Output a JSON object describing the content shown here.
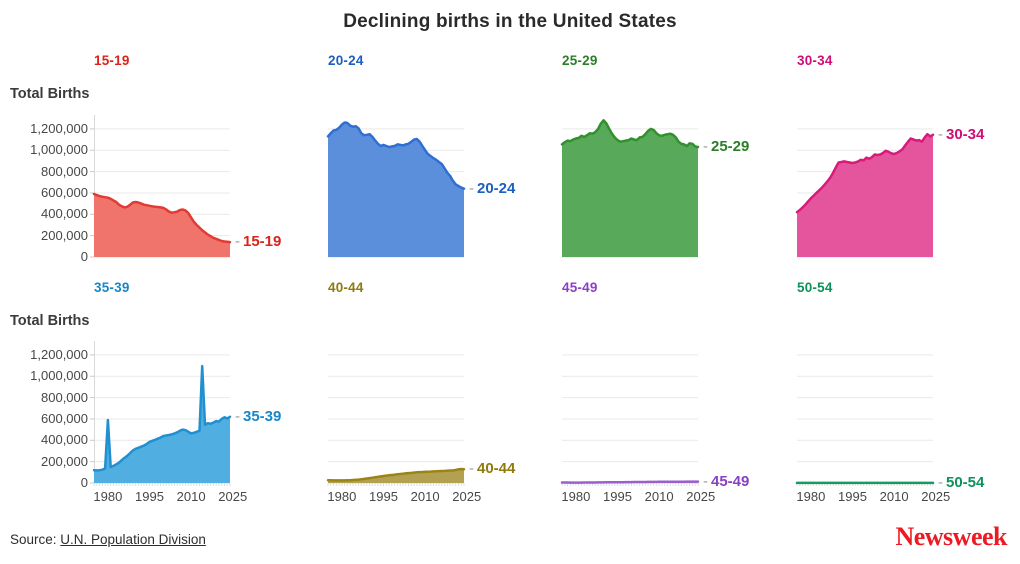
{
  "title": "Declining births in the United States",
  "y_axis_title": "Total Births",
  "source": {
    "prefix": "Source: ",
    "link": "U.N. Population Division"
  },
  "brand": "Newsweek",
  "chart_data": {
    "type": "area",
    "title": "Declining births in the United States",
    "ylabel": "Total Births",
    "layout": "small multiples, 2 rows x 4 columns, shared axes; y labels on first column, x labels on bottom row; grid on",
    "ylim": [
      0,
      1330000
    ],
    "x_years": [
      1975,
      1976,
      1977,
      1978,
      1979,
      1980,
      1981,
      1982,
      1983,
      1984,
      1985,
      1986,
      1987,
      1988,
      1989,
      1990,
      1991,
      1992,
      1993,
      1994,
      1995,
      1996,
      1997,
      1998,
      1999,
      2000,
      2001,
      2002,
      2003,
      2004,
      2005,
      2006,
      2007,
      2008,
      2009,
      2010,
      2011,
      2012,
      2013,
      2014,
      2015,
      2016,
      2017,
      2018,
      2019,
      2020,
      2021,
      2022,
      2023,
      2024
    ],
    "x_tick_years": [
      1980,
      1995,
      2010,
      2025
    ],
    "y_ticks": [
      {
        "value": 0,
        "label": "0"
      },
      {
        "value": 200000,
        "label": "200,000"
      },
      {
        "value": 400000,
        "label": "400,000"
      },
      {
        "value": 600000,
        "label": "600,000"
      },
      {
        "value": 800000,
        "label": "800,000"
      },
      {
        "value": 1000000,
        "label": "1,000,000"
      },
      {
        "value": 1200000,
        "label": "1,200,000"
      }
    ],
    "series": [
      {
        "name": "15-19",
        "stroke": "#e23b33",
        "fill": "#f0736c",
        "label_color": "#d9231b",
        "values": [
          590000,
          580000,
          570000,
          565000,
          560000,
          555000,
          545000,
          530000,
          515000,
          490000,
          475000,
          465000,
          470000,
          490000,
          510000,
          515000,
          510000,
          500000,
          490000,
          485000,
          480000,
          475000,
          470000,
          468000,
          465000,
          460000,
          445000,
          425000,
          415000,
          420000,
          425000,
          440000,
          445000,
          435000,
          410000,
          370000,
          330000,
          300000,
          275000,
          250000,
          230000,
          210000,
          195000,
          180000,
          170000,
          160000,
          150000,
          145000,
          142000,
          140000
        ]
      },
      {
        "name": "20-24",
        "stroke": "#2e6fd3",
        "fill": "#5c8fdb",
        "label_color": "#1b5fc1",
        "values": [
          1130000,
          1160000,
          1185000,
          1190000,
          1210000,
          1240000,
          1260000,
          1255000,
          1230000,
          1220000,
          1225000,
          1205000,
          1160000,
          1140000,
          1145000,
          1150000,
          1125000,
          1090000,
          1060000,
          1040000,
          1050000,
          1040000,
          1030000,
          1035000,
          1040000,
          1055000,
          1050000,
          1045000,
          1055000,
          1060000,
          1080000,
          1100000,
          1105000,
          1080000,
          1040000,
          1000000,
          965000,
          945000,
          925000,
          910000,
          890000,
          870000,
          830000,
          790000,
          760000,
          715000,
          680000,
          665000,
          650000,
          640000
        ]
      },
      {
        "name": "25-29",
        "stroke": "#31912e",
        "fill": "#58a95a",
        "label_color": "#2b7f27",
        "values": [
          1055000,
          1075000,
          1090000,
          1085000,
          1100000,
          1110000,
          1115000,
          1135000,
          1125000,
          1140000,
          1160000,
          1155000,
          1170000,
          1200000,
          1250000,
          1280000,
          1250000,
          1200000,
          1155000,
          1120000,
          1095000,
          1080000,
          1085000,
          1090000,
          1095000,
          1110000,
          1100000,
          1095000,
          1120000,
          1125000,
          1150000,
          1180000,
          1200000,
          1190000,
          1160000,
          1140000,
          1135000,
          1145000,
          1150000,
          1155000,
          1145000,
          1120000,
          1080000,
          1060000,
          1055000,
          1040000,
          1065000,
          1060000,
          1035000,
          1030000
        ]
      },
      {
        "name": "30-34",
        "stroke": "#d81b7b",
        "fill": "#e4559e",
        "label_color": "#cf0d74",
        "values": [
          420000,
          440000,
          465000,
          490000,
          520000,
          550000,
          575000,
          600000,
          625000,
          650000,
          680000,
          710000,
          745000,
          790000,
          840000,
          885000,
          890000,
          895000,
          890000,
          885000,
          880000,
          885000,
          895000,
          910000,
          905000,
          930000,
          920000,
          935000,
          960000,
          955000,
          960000,
          975000,
          995000,
          985000,
          970000,
          965000,
          975000,
          990000,
          1010000,
          1045000,
          1080000,
          1110000,
          1100000,
          1090000,
          1095000,
          1080000,
          1120000,
          1150000,
          1130000,
          1145000
        ]
      },
      {
        "name": "35-39",
        "stroke": "#2090d0",
        "fill": "#50afe0",
        "label_color": "#1787c7",
        "values": [
          120000,
          118000,
          120000,
          125000,
          135000,
          590000,
          150000,
          160000,
          175000,
          190000,
          215000,
          235000,
          255000,
          280000,
          305000,
          320000,
          330000,
          340000,
          350000,
          365000,
          385000,
          395000,
          405000,
          415000,
          425000,
          440000,
          445000,
          450000,
          455000,
          465000,
          475000,
          490000,
          500000,
          495000,
          480000,
          465000,
          470000,
          480000,
          490000,
          1095000,
          545000,
          560000,
          555000,
          565000,
          580000,
          575000,
          600000,
          615000,
          605000,
          620000
        ]
      },
      {
        "name": "40-44",
        "stroke": "#9b8416",
        "fill": "#b3a152",
        "label_color": "#8f7a0d",
        "values": [
          26000,
          25000,
          24000,
          24000,
          24000,
          24000,
          24000,
          25000,
          26000,
          28000,
          30000,
          32000,
          35000,
          38000,
          42000,
          46000,
          50000,
          54000,
          58000,
          62000,
          66000,
          69000,
          72000,
          75000,
          78000,
          82000,
          84000,
          87000,
          91000,
          93000,
          95000,
          97000,
          100000,
          102000,
          103000,
          105000,
          106000,
          107000,
          109000,
          110000,
          111000,
          112000,
          113000,
          115000,
          117000,
          118000,
          122000,
          127000,
          131000,
          128000
        ]
      },
      {
        "name": "45-49",
        "stroke": "#9a5fcd",
        "fill": "#b489da",
        "label_color": "#8a3fc4",
        "values": [
          4500,
          4400,
          4300,
          4200,
          4200,
          4100,
          4100,
          4200,
          4300,
          4400,
          4600,
          4800,
          5000,
          5200,
          5500,
          5800,
          6100,
          6400,
          6700,
          7000,
          7300,
          7600,
          7900,
          8200,
          8500,
          8800,
          9000,
          9200,
          9400,
          9600,
          9800,
          10000,
          10200,
          10400,
          10600,
          10800,
          11000,
          11200,
          11400,
          11600,
          11800,
          12000,
          12200,
          12400,
          12600,
          12800,
          13000,
          13200,
          13300,
          13400
        ]
      },
      {
        "name": "50-54",
        "stroke": "#189a62",
        "fill": "#4fb389",
        "label_color": "#0e915a",
        "values": [
          500,
          500,
          500,
          500,
          500,
          500,
          500,
          500,
          500,
          500,
          500,
          600,
          600,
          600,
          600,
          700,
          700,
          700,
          700,
          800,
          800,
          800,
          800,
          800,
          900,
          900,
          900,
          900,
          900,
          1000,
          1000,
          1000,
          1000,
          1000,
          1000,
          1100,
          1100,
          1100,
          1100,
          1100,
          1100,
          1100,
          1200,
          1200,
          1200,
          1200,
          1200,
          1200,
          1200,
          1200
        ]
      }
    ]
  }
}
